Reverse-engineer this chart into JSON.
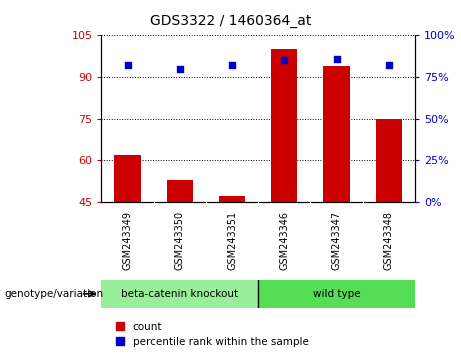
{
  "title": "GDS3322 / 1460364_at",
  "samples": [
    "GSM243349",
    "GSM243350",
    "GSM243351",
    "GSM243346",
    "GSM243347",
    "GSM243348"
  ],
  "count_values": [
    62,
    53,
    47,
    100,
    94,
    75
  ],
  "percentile_values": [
    82,
    80,
    82,
    85,
    86,
    82
  ],
  "ylim_left": [
    45,
    105
  ],
  "ylim_right": [
    0,
    100
  ],
  "yticks_left": [
    45,
    60,
    75,
    90,
    105
  ],
  "yticks_right": [
    0,
    25,
    50,
    75,
    100
  ],
  "bar_color": "#cc0000",
  "dot_color": "#0000cc",
  "grid_color": "#000000",
  "group1_label": "beta-catenin knockout",
  "group2_label": "wild type",
  "group1_color": "#99ee99",
  "group2_color": "#55dd55",
  "sample_row_color": "#cccccc",
  "legend_count_label": "count",
  "legend_pct_label": "percentile rank within the sample",
  "bar_width": 0.5,
  "n_group1": 3,
  "n_group2": 3
}
